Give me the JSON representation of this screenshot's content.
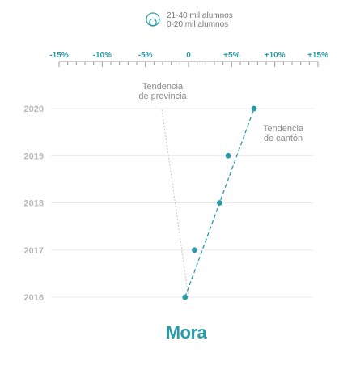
{
  "chart_data": {
    "type": "scatter",
    "title": "Mora",
    "legend": {
      "entries": [
        "21-40 mil alumnos",
        "0-20 mil alumnos"
      ],
      "placement": "top-center",
      "icon": "nested-circles-icon"
    },
    "x_axis": {
      "range": [
        -15,
        15
      ],
      "position": "top",
      "tick_labels": [
        "-15%",
        "-10%",
        "-5%",
        "0",
        "+5%",
        "+10%",
        "+15%"
      ],
      "tick_values": [
        -15,
        -10,
        -5,
        0,
        5,
        10,
        15
      ]
    },
    "y_axis": {
      "categories": [
        "2016",
        "2017",
        "2018",
        "2019",
        "2020"
      ]
    },
    "series": [
      {
        "name": "Tendencia de cantón",
        "color": "#2a9aa6",
        "points": [
          {
            "y": "2016",
            "x": -0.4
          },
          {
            "y": "2017",
            "x": 0.7
          },
          {
            "y": "2018",
            "x": 3.6
          },
          {
            "y": "2019",
            "x": 4.6
          },
          {
            "y": "2020",
            "x": 7.6
          }
        ],
        "trend": {
          "from": {
            "y": "2016",
            "x": -0.4
          },
          "to": {
            "y": "2020",
            "x": 7.6
          },
          "style": "dashed"
        }
      }
    ],
    "provincial_trend": {
      "name": "Tendencia de provincia",
      "color": "#c4c4c4",
      "from": {
        "y": "2016",
        "x": 0.0
      },
      "to": {
        "y": "2020",
        "x": -3.1
      },
      "style": "dotted"
    },
    "annotations": [
      {
        "lines": [
          "Tendencia",
          "de provincia"
        ],
        "anchor": "top-left-of-provincial-line"
      },
      {
        "lines": [
          "Tendencia",
          "de cantón"
        ],
        "anchor": "right-of-2019-point"
      }
    ],
    "grid": "horizontal"
  }
}
